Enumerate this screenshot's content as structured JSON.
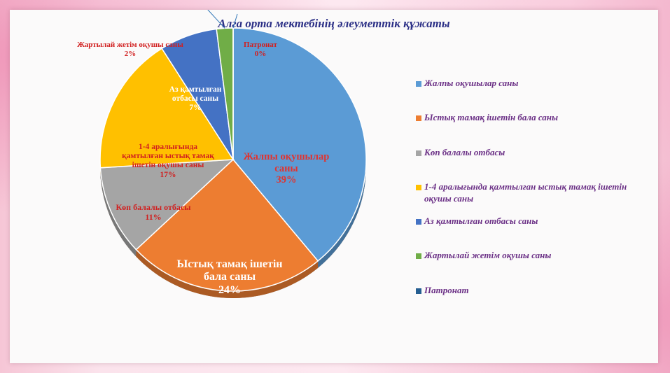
{
  "slide": {
    "title": "Алга орта мектебінің  әлеуметтік  құжаты"
  },
  "chart_data": {
    "type": "pie",
    "title": "Алга орта мектебінің  әлеуметтік  құжаты",
    "legend_position": "right",
    "slices": [
      {
        "name": "Жалпы оқушылар саны",
        "value": 39,
        "color": "#5b9bd5",
        "label": "Жалпы оқушылар\nсаны",
        "pct": "39%"
      },
      {
        "name": "Ыстық тамақ ішетін бала саны",
        "value": 24,
        "color": "#ed7d31",
        "label": "Ыстық тамақ ішетін\nбала саны",
        "pct": "24%"
      },
      {
        "name": "Көп балалы отбасы",
        "value": 11,
        "color": "#a5a5a5",
        "label": "Көп балалы отбасы",
        "pct": "11%"
      },
      {
        "name": "1-4 аралығында қамтылған ыстық тамақ ішетін оқушы саны",
        "value": 17,
        "color": "#ffc000",
        "label": "1-4 аралығында\nқамтылған ыстық тамақ\nішетін оқушы саны",
        "pct": "17%"
      },
      {
        "name": "Аз қамтылған отбасы саны",
        "value": 7,
        "color": "#4472c4",
        "label": "Аз қамтылған\nотбасы саны",
        "pct": "7%"
      },
      {
        "name": "Жартылай жетім оқушы саны",
        "value": 2,
        "color": "#70ad47",
        "label": "Жартылай жетім оқушы саны",
        "pct": "2%"
      },
      {
        "name": "Патронат",
        "value": 0,
        "color": "#255e91",
        "label": "Патронат",
        "pct": "0%"
      }
    ]
  }
}
